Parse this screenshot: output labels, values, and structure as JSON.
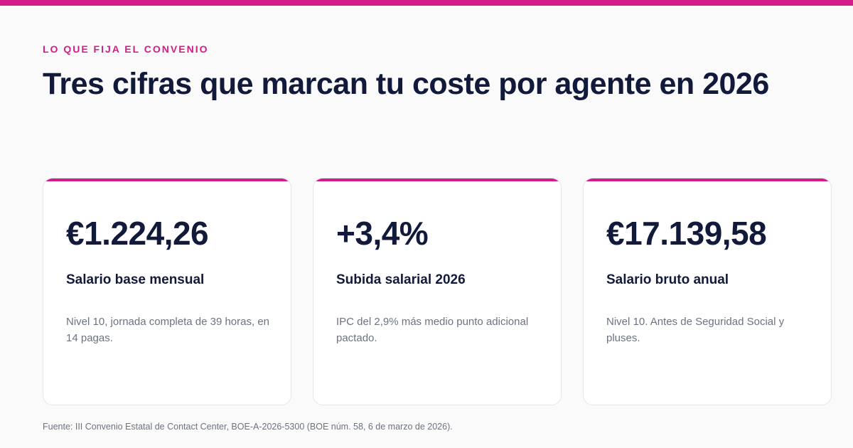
{
  "colors": {
    "accent": "#d41b8a",
    "heading": "#111a3a",
    "muted": "#6b7280",
    "background": "#fafafa",
    "card_border": "#e3e5ea"
  },
  "eyebrow": "LO QUE FIJA EL CONVENIO",
  "headline": "Tres cifras que marcan tu coste por agente en 2026",
  "cards": [
    {
      "value": "€1.224,26",
      "label": "Salario base mensual",
      "description": "Nivel 10, jornada completa de 39 horas, en 14 pagas."
    },
    {
      "value": "+3,4%",
      "label": "Subida salarial 2026",
      "description": "IPC del 2,9% más medio punto adicional pactado."
    },
    {
      "value": "€17.139,58",
      "label": "Salario bruto anual",
      "description": "Nivel 10. Antes de Seguridad Social y pluses."
    }
  ],
  "source": "Fuente: III Convenio Estatal de Contact Center, BOE-A-2026-5300 (BOE núm. 58, 6 de marzo de 2026)."
}
